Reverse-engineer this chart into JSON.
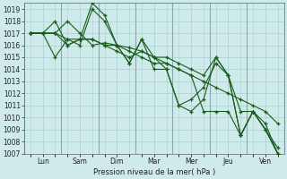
{
  "title": "",
  "xlabel": "Pression niveau de la mer( hPa )",
  "ylabel": "",
  "background_color": "#ceeaea",
  "grid_color": "#aad0d0",
  "line_color": "#1a5c1a",
  "sep_line_color": "#88aaaa",
  "ylim": [
    1007,
    1019.5
  ],
  "yticks": [
    1007,
    1008,
    1009,
    1010,
    1011,
    1012,
    1013,
    1014,
    1015,
    1016,
    1017,
    1018,
    1019
  ],
  "xtick_labels": [
    "Lun",
    "Sam",
    "Dim",
    "Mar",
    "Mer",
    "Jeu",
    "Ven"
  ],
  "n_days": 7,
  "pts_per_day": 3,
  "series": [
    [
      1017.0,
      1017.0,
      1017.0,
      1018.0,
      1017.0,
      1016.0,
      1016.2,
      1016.0,
      1015.8,
      1015.5,
      1015.0,
      1014.5,
      1014.0,
      1013.5,
      1010.5,
      1010.5,
      1010.5,
      1008.5,
      1010.5,
      1009.5,
      1007.0
    ],
    [
      1017.0,
      1017.0,
      1015.0,
      1016.5,
      1016.0,
      1019.0,
      1018.0,
      1016.0,
      1014.5,
      1016.5,
      1015.0,
      1014.0,
      1011.0,
      1011.5,
      1012.5,
      1014.5,
      1013.5,
      1008.5,
      1010.5,
      1009.0,
      1007.0
    ],
    [
      1017.0,
      1017.0,
      1018.0,
      1016.0,
      1016.5,
      1019.5,
      1018.5,
      1016.0,
      1014.5,
      1016.5,
      1014.0,
      1014.0,
      1011.0,
      1010.5,
      1011.5,
      1015.0,
      1013.5,
      1008.5,
      1010.5,
      1009.0,
      1007.0
    ],
    [
      1017.0,
      1017.0,
      1017.0,
      1016.5,
      1016.5,
      1016.5,
      1016.0,
      1016.0,
      1015.5,
      1015.0,
      1014.5,
      1014.5,
      1014.0,
      1013.5,
      1013.0,
      1012.5,
      1012.0,
      1011.5,
      1011.0,
      1010.5,
      1009.5
    ],
    [
      1017.0,
      1017.0,
      1017.0,
      1016.0,
      1016.5,
      1016.5,
      1016.0,
      1015.5,
      1015.0,
      1015.5,
      1015.0,
      1015.0,
      1014.5,
      1014.0,
      1013.5,
      1015.0,
      1013.5,
      1010.5,
      1010.5,
      1009.0,
      1007.5
    ]
  ],
  "figsize": [
    3.2,
    2.0
  ],
  "dpi": 100
}
